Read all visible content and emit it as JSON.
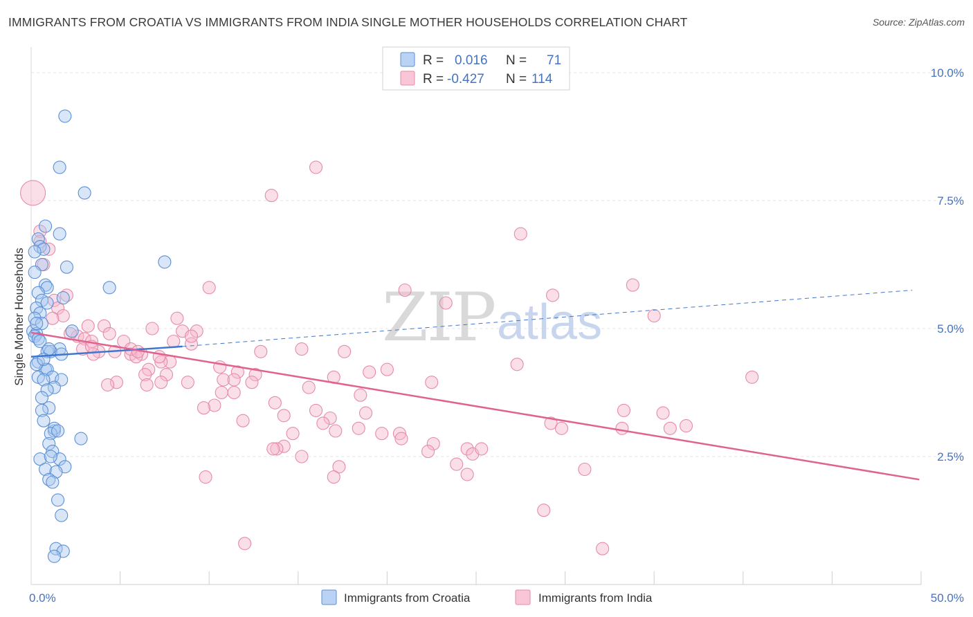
{
  "title": "IMMIGRANTS FROM CROATIA VS IMMIGRANTS FROM INDIA SINGLE MOTHER HOUSEHOLDS CORRELATION CHART",
  "source": "Source: ZipAtlas.com",
  "watermark": {
    "zip": "ZIP",
    "atlas": "atlas"
  },
  "colors": {
    "croatia_fill": "#a9c7f0",
    "croatia_stroke": "#5b8fd6",
    "croatia_line": "#3f76cf",
    "india_fill": "#f6b8cc",
    "india_stroke": "#e68aa8",
    "india_line": "#e0628e",
    "accent_text": "#4472c4",
    "grid": "#e6e6e6"
  },
  "legend": {
    "rows": [
      {
        "r_label": "R =",
        "r_value": "0.016",
        "n_label": "N =",
        "n_value": "71"
      },
      {
        "r_label": "R =",
        "r_value": "-0.427",
        "n_label": "N =",
        "n_value": "114"
      }
    ]
  },
  "chart_data": {
    "type": "scatter",
    "xlabel": "",
    "ylabel": "Single Mother Households",
    "xlim": [
      0,
      50
    ],
    "ylim": [
      0,
      10.5
    ],
    "x_tick_labels": [
      "0.0%",
      "50.0%"
    ],
    "y_ticks": [
      2.5,
      5.0,
      7.5,
      10.0
    ],
    "y_tick_labels": [
      "2.5%",
      "5.0%",
      "7.5%",
      "10.0%"
    ],
    "grid": true,
    "legend_position": "top-center",
    "series": [
      {
        "name": "Immigrants from Croatia",
        "r": 0.016,
        "n": 71,
        "trend_solid": [
          [
            0.0,
            4.45
          ],
          [
            8.5,
            4.65
          ]
        ],
        "trend_dashed": [
          [
            8.5,
            4.65
          ],
          [
            49.5,
            5.75
          ]
        ],
        "points": [
          [
            1.9,
            9.15
          ],
          [
            1.6,
            8.15
          ],
          [
            3.0,
            7.65
          ],
          [
            0.8,
            7.0
          ],
          [
            1.6,
            6.85
          ],
          [
            0.4,
            6.75
          ],
          [
            0.5,
            6.6
          ],
          [
            0.7,
            6.55
          ],
          [
            0.2,
            6.5
          ],
          [
            0.6,
            6.25
          ],
          [
            2.0,
            6.2
          ],
          [
            7.5,
            6.3
          ],
          [
            0.2,
            6.1
          ],
          [
            0.8,
            5.85
          ],
          [
            0.9,
            5.8
          ],
          [
            4.4,
            5.8
          ],
          [
            0.4,
            5.7
          ],
          [
            1.8,
            5.6
          ],
          [
            0.6,
            5.55
          ],
          [
            0.3,
            5.4
          ],
          [
            0.5,
            5.3
          ],
          [
            0.2,
            5.2
          ],
          [
            0.6,
            5.1
          ],
          [
            0.1,
            4.95
          ],
          [
            0.3,
            4.9
          ],
          [
            0.2,
            4.85
          ],
          [
            0.4,
            4.8
          ],
          [
            2.3,
            4.95
          ],
          [
            1.6,
            4.6
          ],
          [
            0.9,
            4.55
          ],
          [
            1.1,
            4.55
          ],
          [
            1.7,
            4.5
          ],
          [
            0.4,
            4.35
          ],
          [
            0.8,
            4.2
          ],
          [
            0.9,
            4.2
          ],
          [
            0.4,
            4.05
          ],
          [
            1.2,
            4.05
          ],
          [
            1.7,
            4.0
          ],
          [
            0.7,
            4.0
          ],
          [
            1.3,
            3.85
          ],
          [
            0.9,
            3.8
          ],
          [
            0.6,
            3.65
          ],
          [
            1.0,
            3.45
          ],
          [
            0.6,
            3.4
          ],
          [
            0.7,
            3.2
          ],
          [
            1.3,
            3.0
          ],
          [
            1.3,
            3.05
          ],
          [
            1.1,
            2.95
          ],
          [
            2.8,
            2.85
          ],
          [
            1.0,
            2.75
          ],
          [
            1.2,
            2.6
          ],
          [
            0.5,
            2.45
          ],
          [
            1.6,
            2.45
          ],
          [
            1.9,
            2.3
          ],
          [
            0.8,
            2.25
          ],
          [
            1.4,
            2.2
          ],
          [
            1.0,
            2.05
          ],
          [
            1.2,
            2.0
          ],
          [
            1.5,
            1.65
          ],
          [
            1.7,
            1.35
          ],
          [
            1.4,
            0.7
          ],
          [
            1.8,
            0.65
          ],
          [
            1.3,
            0.55
          ],
          [
            0.3,
            4.3
          ],
          [
            0.5,
            4.75
          ],
          [
            1.0,
            4.6
          ],
          [
            0.3,
            5.1
          ],
          [
            0.7,
            4.4
          ],
          [
            1.5,
            3.0
          ],
          [
            0.9,
            5.5
          ],
          [
            1.1,
            2.5
          ]
        ]
      },
      {
        "name": "Immigrants from India",
        "r": -0.427,
        "n": 114,
        "trend": [
          [
            0.0,
            4.92
          ],
          [
            49.9,
            2.05
          ]
        ],
        "points": [
          [
            0.1,
            7.65
          ],
          [
            0.5,
            6.9
          ],
          [
            0.5,
            6.7
          ],
          [
            1.0,
            6.55
          ],
          [
            0.7,
            6.25
          ],
          [
            1.3,
            5.55
          ],
          [
            2.0,
            5.65
          ],
          [
            1.5,
            5.4
          ],
          [
            1.8,
            5.25
          ],
          [
            1.2,
            5.2
          ],
          [
            16.0,
            8.15
          ],
          [
            13.5,
            7.6
          ],
          [
            27.5,
            6.85
          ],
          [
            10.0,
            5.8
          ],
          [
            21.0,
            5.75
          ],
          [
            29.3,
            5.65
          ],
          [
            33.8,
            5.85
          ],
          [
            23.3,
            5.5
          ],
          [
            35.0,
            5.25
          ],
          [
            8.2,
            5.2
          ],
          [
            3.2,
            5.05
          ],
          [
            4.1,
            5.05
          ],
          [
            6.8,
            5.0
          ],
          [
            8.5,
            4.95
          ],
          [
            9.3,
            4.95
          ],
          [
            4.4,
            4.9
          ],
          [
            2.6,
            4.85
          ],
          [
            3.0,
            4.8
          ],
          [
            3.4,
            4.75
          ],
          [
            5.2,
            4.75
          ],
          [
            8.0,
            4.75
          ],
          [
            9.0,
            4.7
          ],
          [
            3.8,
            4.55
          ],
          [
            4.7,
            4.55
          ],
          [
            5.6,
            4.5
          ],
          [
            6.2,
            4.5
          ],
          [
            5.9,
            4.45
          ],
          [
            2.9,
            4.6
          ],
          [
            3.5,
            4.5
          ],
          [
            12.9,
            4.55
          ],
          [
            15.2,
            4.6
          ],
          [
            17.6,
            4.55
          ],
          [
            7.8,
            4.35
          ],
          [
            7.3,
            4.35
          ],
          [
            6.6,
            4.2
          ],
          [
            7.6,
            4.1
          ],
          [
            10.6,
            4.25
          ],
          [
            11.6,
            4.15
          ],
          [
            12.6,
            4.1
          ],
          [
            17.0,
            4.05
          ],
          [
            19.0,
            4.15
          ],
          [
            20.0,
            4.2
          ],
          [
            6.4,
            4.1
          ],
          [
            4.8,
            3.95
          ],
          [
            4.3,
            3.9
          ],
          [
            7.3,
            3.95
          ],
          [
            6.5,
            3.9
          ],
          [
            8.8,
            3.95
          ],
          [
            10.8,
            4.0
          ],
          [
            12.4,
            3.95
          ],
          [
            15.6,
            3.85
          ],
          [
            22.5,
            3.95
          ],
          [
            27.3,
            4.3
          ],
          [
            40.5,
            4.05
          ],
          [
            10.7,
            3.75
          ],
          [
            11.4,
            3.75
          ],
          [
            18.5,
            3.7
          ],
          [
            13.7,
            3.55
          ],
          [
            10.3,
            3.5
          ],
          [
            9.7,
            3.45
          ],
          [
            16.0,
            3.4
          ],
          [
            18.8,
            3.35
          ],
          [
            16.8,
            3.25
          ],
          [
            14.2,
            3.3
          ],
          [
            11.9,
            3.2
          ],
          [
            35.5,
            3.35
          ],
          [
            33.3,
            3.4
          ],
          [
            16.4,
            3.15
          ],
          [
            14.7,
            2.95
          ],
          [
            17.1,
            3.0
          ],
          [
            18.4,
            3.05
          ],
          [
            19.7,
            2.95
          ],
          [
            20.7,
            2.95
          ],
          [
            20.8,
            2.85
          ],
          [
            22.6,
            2.75
          ],
          [
            14.2,
            2.7
          ],
          [
            13.8,
            2.65
          ],
          [
            13.6,
            2.65
          ],
          [
            15.2,
            2.5
          ],
          [
            22.3,
            2.6
          ],
          [
            24.5,
            2.65
          ],
          [
            24.8,
            2.55
          ],
          [
            25.3,
            2.65
          ],
          [
            29.2,
            3.15
          ],
          [
            29.8,
            3.05
          ],
          [
            33.2,
            3.05
          ],
          [
            35.9,
            3.05
          ],
          [
            36.8,
            3.1
          ],
          [
            23.9,
            2.35
          ],
          [
            17.3,
            2.3
          ],
          [
            24.5,
            2.15
          ],
          [
            31.1,
            2.25
          ],
          [
            17.0,
            2.1
          ],
          [
            9.8,
            2.1
          ],
          [
            28.8,
            1.45
          ],
          [
            12.0,
            0.8
          ],
          [
            32.1,
            0.7
          ],
          [
            3.4,
            4.65
          ],
          [
            5.6,
            4.6
          ],
          [
            7.2,
            4.45
          ],
          [
            6.0,
            4.55
          ],
          [
            9.0,
            4.85
          ],
          [
            11.4,
            4.0
          ],
          [
            2.2,
            4.9
          ]
        ]
      }
    ]
  }
}
